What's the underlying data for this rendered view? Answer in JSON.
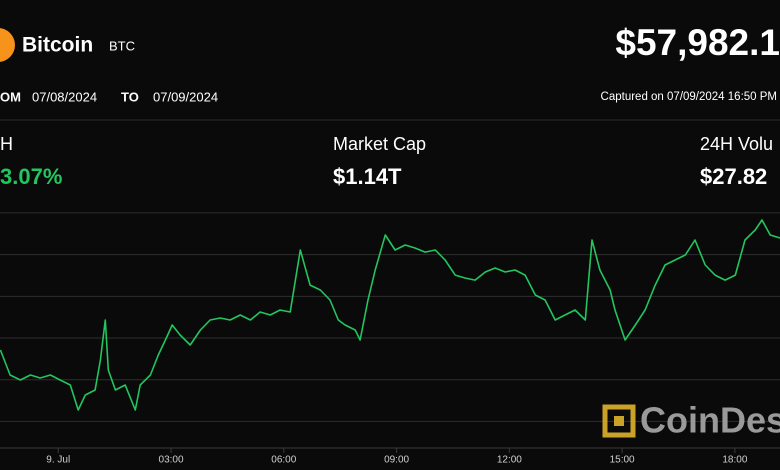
{
  "header": {
    "name": "Bitcoin",
    "symbol": "BTC",
    "price": "$57,982.1",
    "from_label": "OM",
    "from_date": "07/08/2024",
    "to_label": "TO",
    "to_date": "07/09/2024",
    "captured": "Captured on 07/09/2024 16:50 PM"
  },
  "stats": [
    {
      "label": "H",
      "value": "3.07%"
    },
    {
      "label": "Market Cap",
      "value": "$1.14T"
    },
    {
      "label": "24H Volu",
      "value": "$27.82"
    }
  ],
  "watermark": "CoinDes",
  "chart_data": {
    "type": "line",
    "color": "#22c55e",
    "grid": true,
    "x": [
      -1.54,
      -1.28,
      -1.01,
      -0.74,
      -0.48,
      -0.21,
      0.05,
      0.32,
      0.53,
      0.72,
      0.98,
      1.12,
      1.25,
      1.33,
      1.52,
      1.78,
      2.05,
      2.18,
      2.45,
      2.66,
      2.85,
      3.03,
      3.24,
      3.51,
      3.78,
      4.04,
      4.31,
      4.57,
      4.84,
      5.11,
      5.37,
      5.64,
      5.9,
      6.17,
      6.44,
      6.7,
      6.97,
      7.23,
      7.45,
      7.63,
      7.9,
      8.03,
      8.24,
      8.43,
      8.7,
      8.96,
      9.23,
      9.49,
      9.76,
      10.03,
      10.29,
      10.56,
      10.82,
      11.09,
      11.36,
      11.62,
      11.89,
      12.15,
      12.42,
      12.69,
      12.95,
      13.22,
      13.48,
      13.75,
      14.02,
      14.2,
      14.41,
      14.68,
      14.81,
      15.08,
      15.35,
      15.61,
      15.88,
      16.14,
      16.41,
      16.68,
      16.94,
      17.21,
      17.47,
      17.74,
      18.01,
      18.27,
      18.54,
      18.72,
      18.94,
      19.2
    ],
    "values": [
      56327,
      55967,
      55895,
      55967,
      55924,
      55967,
      55895,
      55823,
      55464,
      55680,
      55752,
      56183,
      56759,
      56039,
      55752,
      55823,
      55464,
      55823,
      55967,
      56255,
      56471,
      56687,
      56543,
      56399,
      56615,
      56759,
      56788,
      56759,
      56831,
      56759,
      56874,
      56831,
      56903,
      56874,
      57766,
      57262,
      57191,
      57047,
      56759,
      56687,
      56615,
      56471,
      57047,
      57478,
      57982,
      57766,
      57838,
      57795,
      57737,
      57766,
      57622,
      57406,
      57363,
      57334,
      57450,
      57507,
      57450,
      57478,
      57406,
      57119,
      57047,
      56759,
      56831,
      56903,
      56759,
      57910,
      57478,
      57191,
      56903,
      56471,
      56687,
      56903,
      57262,
      57550,
      57622,
      57694,
      57910,
      57550,
      57406,
      57334,
      57406,
      57910,
      58054,
      58198,
      57982,
      57939
    ],
    "xlim": [
      -1.55,
      19.2
    ],
    "xticks": [
      {
        "value": 0,
        "label": "9. Jul"
      },
      {
        "value": 3,
        "label": "03:00"
      },
      {
        "value": 6,
        "label": "06:00"
      },
      {
        "value": 9,
        "label": "09:00"
      },
      {
        "value": 12,
        "label": "12:00"
      },
      {
        "value": 15,
        "label": "15:00"
      },
      {
        "value": 18,
        "label": "18:00"
      }
    ],
    "ylim": [
      54917,
      58630
    ],
    "yticks": [
      55300,
      55900,
      56500,
      57100,
      57700,
      58300
    ]
  }
}
